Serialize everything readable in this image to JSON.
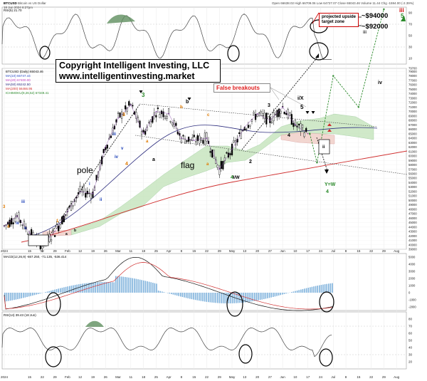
{
  "header": {
    "symbol": "BTCUSD",
    "symbol_desc": "Bitcoin vs US Dollar",
    "date": "18 Jun 2024 6:27pm",
    "ohlc": "Open 66638.02 High 66709.06 Low 64727.07 Close 65043.46 Volume 11.44 Chg -1594.00 (-2.39%)"
  },
  "legends": {
    "top_indicator": "RSI(5) 21.70",
    "price_panel": "BTCUSD (Daily) 65043.46",
    "ma_lines": [
      "MA(10) 66747.44",
      "MA(20) 67400.00",
      "MA(50) 65242.50",
      "MA(200) 56466.95"
    ],
    "ichimoku": "ICHIMOKU(9,26,52) 67349.41",
    "macd": "MACD(12,26,9) -667.250, -71.135, -536.414",
    "rsi_bottom": "RSI(14) 39.43 (18 Jun)"
  },
  "annotations": {
    "copyright_line1": "Copyright Intelligent Investing, LLC",
    "copyright_line2": "www.intelligentinvesting.market",
    "projected_box": "projected upside target zone",
    "target_high": "~$94000",
    "target_low": "~$92000",
    "false_breakouts": "False breakouts",
    "pole": "pole",
    "flag": "flag",
    "wave_labels": {
      "w3_green": "3",
      "wa_flag": "a",
      "wb_flag": "b",
      "w4_iw": "4/W",
      "w1": "1",
      "w2": "2",
      "w3": "3",
      "w4": "4",
      "w5": "5",
      "wix": "i/X",
      "wii": "ii",
      "wyw": "Y=W",
      "w4_green": "4",
      "wiii": "iii",
      "wiv": "iv",
      "w5_green": "5",
      "wiii_red": "iii",
      "w1_orange": "1",
      "w3_orange": "3",
      "w4_orange": "4",
      "wa_orange": "a",
      "wb_orange": "b",
      "wi": "i",
      "wii_blue": "ii",
      "wiii_blue": "iii",
      "wiv_blue": "iv",
      "wv_blue": "v",
      "wc_orange": "c",
      "wa_black": "a",
      "wb_black": "b"
    }
  },
  "price_axis": [
    "79700",
    "79000",
    "78000",
    "77000",
    "76000",
    "75000",
    "74000",
    "73000",
    "72000",
    "71000",
    "70000",
    "69000",
    "68000",
    "67000",
    "66000",
    "65000",
    "64000",
    "63000",
    "62000",
    "61000",
    "60000",
    "59000",
    "58000",
    "57000",
    "56000",
    "55000",
    "54000",
    "53000",
    "52000",
    "51000",
    "50000",
    "49000",
    "48000",
    "47000",
    "46000",
    "45000",
    "44000",
    "43000",
    "42000",
    "41000",
    "40000",
    "39000"
  ],
  "rsi_axis": [
    "90",
    "70",
    "50",
    "30",
    "10"
  ],
  "macd_axis": [
    "5000",
    "4000",
    "3000",
    "2000",
    "1000",
    "0",
    "-1000",
    "-2000"
  ],
  "rsi2_axis": [
    "80",
    "70",
    "60",
    "50",
    "40",
    "30",
    "20"
  ],
  "date_axis": [
    "2024",
    "15",
    "22",
    "29",
    "Feb",
    "12",
    "19",
    "26",
    "Mar",
    "11",
    "18",
    "25",
    "Apr",
    "8",
    "15",
    "22",
    "29",
    "May",
    "13",
    "20",
    "27",
    "Jun",
    "10",
    "17",
    "24",
    "Jul",
    "8",
    "15",
    "22",
    "29",
    "Aug"
  ],
  "colors": {
    "ichimoku_green": "#c8e6c0",
    "ichimoku_red": "#f2d6d0",
    "ma200": "#d03030",
    "macd_hist": "#7fb2dc",
    "target_line": "#2b8a2b"
  },
  "chart_data": {
    "type": "line",
    "title": "",
    "xlabel": "",
    "ylabel": "",
    "ylim": [
      39000,
      79700
    ],
    "series": [
      {
        "name": "BTCUSD",
        "x": [
          "2024-01-01",
          "2024-01-08",
          "2024-01-15",
          "2024-01-22",
          "2024-01-29",
          "2024-02-05",
          "2024-02-12",
          "2024-02-19",
          "2024-02-26",
          "2024-03-04",
          "2024-03-11",
          "2024-03-18",
          "2024-03-25",
          "2024-04-01",
          "2024-04-08",
          "2024-04-15",
          "2024-04-22",
          "2024-04-29",
          "2024-05-06",
          "2024-05-13",
          "2024-05-20",
          "2024-05-27",
          "2024-06-03",
          "2024-06-10",
          "2024-06-17"
        ],
        "values": [
          44200,
          46500,
          42700,
          39900,
          43000,
          47500,
          52000,
          51500,
          62000,
          68500,
          71500,
          65000,
          70000,
          69500,
          64000,
          63500,
          64000,
          57000,
          61500,
          66500,
          69500,
          68000,
          71000,
          67000,
          65000
        ]
      }
    ],
    "projection": [
      {
        "x": "2024-06-22",
        "y": 58500
      },
      {
        "x": "2024-07-01",
        "y": 78000
      },
      {
        "x": "2024-07-15",
        "y": 71000
      },
      {
        "x": "2024-07-29",
        "y": 93000
      }
    ]
  }
}
